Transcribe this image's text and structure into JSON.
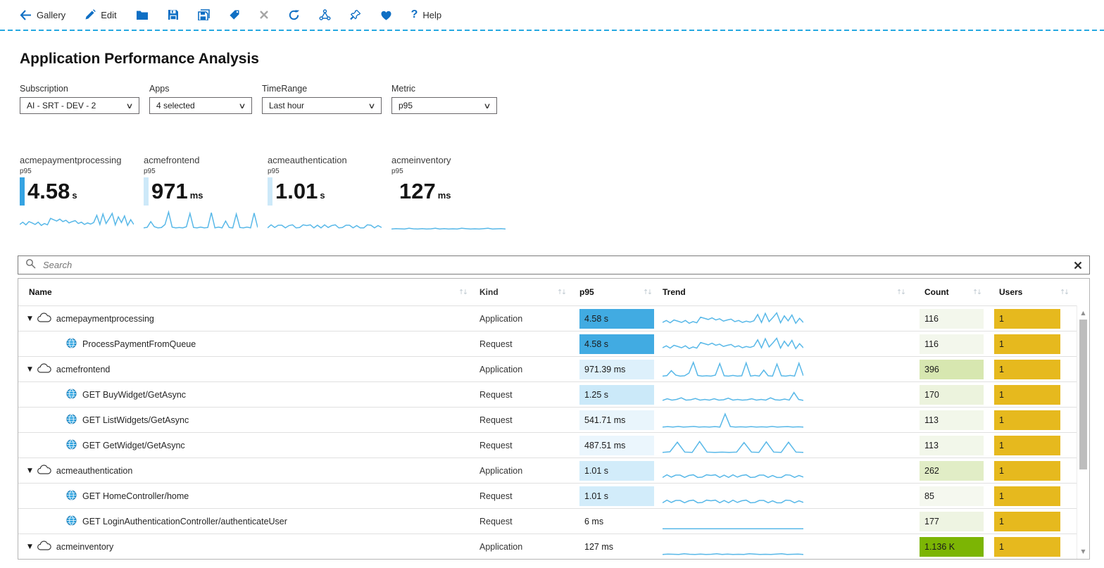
{
  "toolbar": {
    "gallery": "Gallery",
    "edit": "Edit",
    "help": "Help"
  },
  "page": {
    "title": "Application Performance Analysis"
  },
  "filters": [
    {
      "label": "Subscription",
      "value": "AI -  SRT - DEV - 2"
    },
    {
      "label": "Apps",
      "value": "4 selected"
    },
    {
      "label": "TimeRange",
      "value": "Last hour"
    },
    {
      "label": "Metric",
      "value": "p95"
    }
  ],
  "tiles": [
    {
      "name": "acmepaymentprocessing",
      "metric": "p95",
      "value": "4.58",
      "unit": "s",
      "accent": "#35a3e2"
    },
    {
      "name": "acmefrontend",
      "metric": "p95",
      "value": "971",
      "unit": "ms",
      "accent": "#cde9f9"
    },
    {
      "name": "acmeauthentication",
      "metric": "p95",
      "value": "1.01",
      "unit": "s",
      "accent": "#cde9f9"
    },
    {
      "name": "acmeinventory",
      "metric": "p95",
      "value": "127",
      "unit": "ms",
      "accent": "transparent"
    }
  ],
  "search": {
    "placeholder": "Search"
  },
  "icons": {
    "sort": "↑↓",
    "expander": "▼",
    "chevron": "∨",
    "scroll_up": "▲",
    "scroll_down": "▼"
  },
  "colors": {
    "spark": "#58b8e8",
    "p95_strong": "#41abe2",
    "users_gold": "#e6b91e",
    "count_strong": "#7cb504"
  },
  "table": {
    "columns": [
      "Name",
      "Kind",
      "p95",
      "Trend",
      "Count",
      "Users"
    ],
    "rows": [
      {
        "name": "acmepaymentprocessing",
        "kind": "Application",
        "p95": "4.58 s",
        "p95_bg": "#41abe2",
        "count": "116",
        "count_bg": "#f3f7ec",
        "users": "1",
        "users_bg": "#e6b91e"
      },
      {
        "name": "ProcessPaymentFromQueue",
        "kind": "Request",
        "p95": "4.58 s",
        "p95_bg": "#41abe2",
        "count": "116",
        "count_bg": "#f3f7ec",
        "users": "1",
        "users_bg": "#e6b91e"
      },
      {
        "name": "acmefrontend",
        "kind": "Application",
        "p95": "971.39 ms",
        "p95_bg": "#ddf0fb",
        "count": "396",
        "count_bg": "#d7e7b0",
        "users": "1",
        "users_bg": "#e6b91e"
      },
      {
        "name": "GET BuyWidget/GetAsync",
        "kind": "Request",
        "p95": "1.25 s",
        "p95_bg": "#cbe9f9",
        "count": "170",
        "count_bg": "#ecf3dd",
        "users": "1",
        "users_bg": "#e6b91e"
      },
      {
        "name": "GET ListWidgets/GetAsync",
        "kind": "Request",
        "p95": "541.71 ms",
        "p95_bg": "#e9f5fc",
        "count": "113",
        "count_bg": "#f2f7ea",
        "users": "1",
        "users_bg": "#e6b91e"
      },
      {
        "name": "GET GetWidget/GetAsync",
        "kind": "Request",
        "p95": "487.51 ms",
        "p95_bg": "#ebf6fd",
        "count": "113",
        "count_bg": "#f2f7ea",
        "users": "1",
        "users_bg": "#e6b91e"
      },
      {
        "name": "acmeauthentication",
        "kind": "Application",
        "p95": "1.01 s",
        "p95_bg": "#d2ecfa",
        "count": "262",
        "count_bg": "#e1edc6",
        "users": "1",
        "users_bg": "#e6b91e"
      },
      {
        "name": "GET HomeController/home",
        "kind": "Request",
        "p95": "1.01 s",
        "p95_bg": "#d2ecfa",
        "count": "85",
        "count_bg": "#f5f8ef",
        "users": "1",
        "users_bg": "#e6b91e"
      },
      {
        "name": "GET LoginAuthenticationController/authenticateUser",
        "kind": "Request",
        "p95": "6 ms",
        "p95_bg": "transparent",
        "count": "177",
        "count_bg": "#eef4e2",
        "users": "1",
        "users_bg": "#e6b91e"
      },
      {
        "name": "acmeinventory",
        "kind": "Application",
        "p95": "127 ms",
        "p95_bg": "transparent",
        "count": "1.136 K",
        "count_bg": "#7cb504",
        "users": "1",
        "users_bg": "#e6b91e"
      }
    ]
  },
  "sparks": {
    "payment": [
      0.3,
      0.42,
      0.28,
      0.45,
      0.38,
      0.3,
      0.42,
      0.25,
      0.35,
      0.28,
      0.62,
      0.55,
      0.48,
      0.58,
      0.45,
      0.52,
      0.38,
      0.45,
      0.5,
      0.35,
      0.42,
      0.3,
      0.38,
      0.32,
      0.4,
      0.78,
      0.3,
      0.85,
      0.35,
      0.6,
      0.88,
      0.28,
      0.7,
      0.4,
      0.75,
      0.25,
      0.55,
      0.3
    ],
    "frontend": [
      0.12,
      0.15,
      0.45,
      0.18,
      0.12,
      0.14,
      0.3,
      0.95,
      0.16,
      0.12,
      0.14,
      0.12,
      0.18,
      0.88,
      0.14,
      0.12,
      0.16,
      0.12,
      0.14,
      0.92,
      0.12,
      0.16,
      0.12,
      0.48,
      0.14,
      0.12,
      0.85,
      0.14,
      0.12,
      0.16,
      0.12,
      0.9,
      0.14
    ],
    "auth": [
      0.12,
      0.28,
      0.14,
      0.26,
      0.26,
      0.12,
      0.24,
      0.28,
      0.12,
      0.14,
      0.28,
      0.24,
      0.28,
      0.12,
      0.26,
      0.12,
      0.28,
      0.14,
      0.24,
      0.28,
      0.12,
      0.14,
      0.26,
      0.26,
      0.12,
      0.24,
      0.12,
      0.12,
      0.28,
      0.26,
      0.12,
      0.24,
      0.14
    ],
    "inventory": [
      0.06,
      0.08,
      0.07,
      0.06,
      0.1,
      0.07,
      0.06,
      0.08,
      0.06,
      0.07,
      0.1,
      0.06,
      0.08,
      0.06,
      0.07,
      0.06,
      0.1,
      0.08,
      0.06,
      0.07,
      0.06,
      0.08,
      0.1,
      0.06,
      0.07,
      0.08,
      0.06
    ],
    "buy": [
      0.18,
      0.28,
      0.2,
      0.24,
      0.34,
      0.2,
      0.22,
      0.3,
      0.2,
      0.24,
      0.2,
      0.28,
      0.2,
      0.22,
      0.32,
      0.2,
      0.24,
      0.2,
      0.22,
      0.28,
      0.2,
      0.24,
      0.2,
      0.34,
      0.22,
      0.2,
      0.26,
      0.2,
      0.66,
      0.24,
      0.18
    ],
    "list": [
      0.1,
      0.13,
      0.1,
      0.14,
      0.1,
      0.12,
      0.14,
      0.1,
      0.12,
      0.1,
      0.13,
      0.1,
      0.9,
      0.13,
      0.1,
      0.12,
      0.1,
      0.13,
      0.1,
      0.12,
      0.1,
      0.14,
      0.1,
      0.12,
      0.13,
      0.1,
      0.12,
      0.1
    ],
    "get": [
      0.1,
      0.14,
      0.72,
      0.12,
      0.1,
      0.76,
      0.12,
      0.1,
      0.12,
      0.1,
      0.12,
      0.7,
      0.12,
      0.1,
      0.74,
      0.12,
      0.1,
      0.72,
      0.12,
      0.1
    ],
    "flat": [
      0.08,
      0.08,
      0.08,
      0.08,
      0.08,
      0.08,
      0.08,
      0.08,
      0.08,
      0.08,
      0.08,
      0.08,
      0.08,
      0.08,
      0.08,
      0.08,
      0.08,
      0.08,
      0.08,
      0.08,
      0.08,
      0.08,
      0.08,
      0.08
    ]
  }
}
